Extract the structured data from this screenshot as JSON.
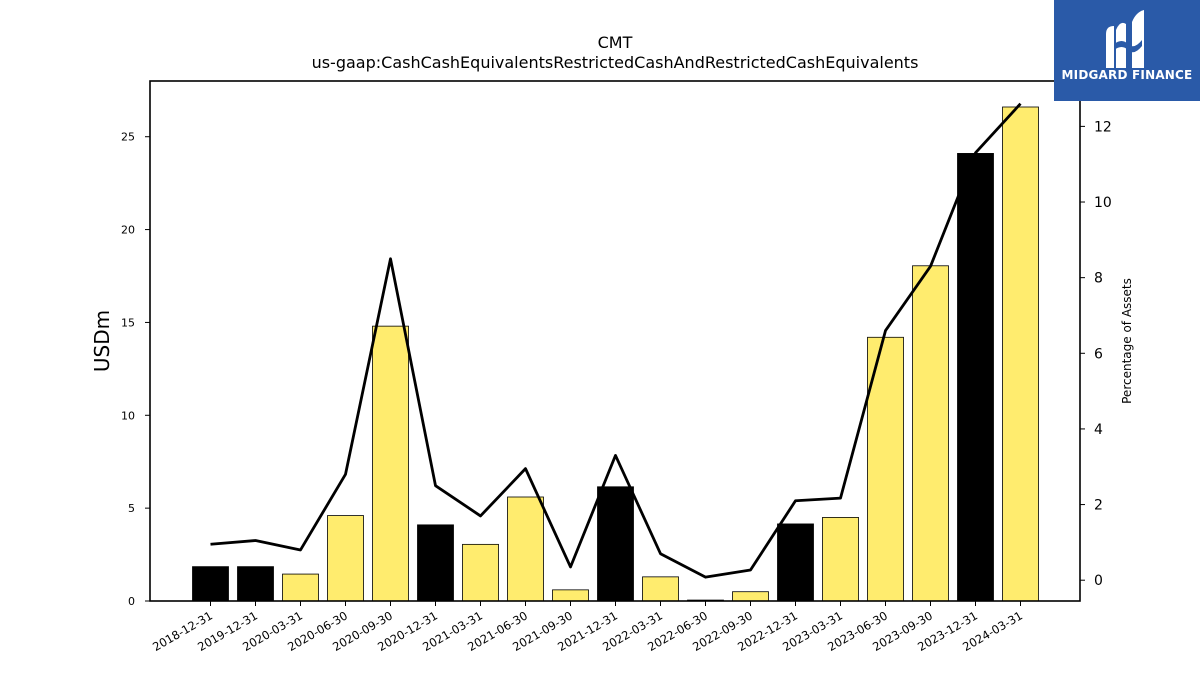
{
  "chart_data": {
    "type": "bar",
    "title": "CMT",
    "subtitle": "us-gaap:CashCashEquivalentsRestrictedCashAndRestrictedCashEquivalents",
    "ylabel": "USDm",
    "y2label": "Percentage of Assets",
    "ylim": [
      0,
      28
    ],
    "y2lim": [
      -0.55,
      13.2
    ],
    "yticks": [
      0,
      5,
      10,
      15,
      20,
      25
    ],
    "y2ticks": [
      0,
      2,
      4,
      6,
      8,
      10,
      12
    ],
    "categories": [
      "2018-12-31",
      "2019-12-31",
      "2020-03-31",
      "2020-06-30",
      "2020-09-30",
      "2020-12-31",
      "2021-03-31",
      "2021-06-30",
      "2021-09-30",
      "2021-12-31",
      "2022-03-31",
      "2022-06-30",
      "2022-09-30",
      "2022-12-31",
      "2023-03-31",
      "2023-06-30",
      "2023-09-30",
      "2023-12-31",
      "2024-03-31"
    ],
    "values": [
      1.85,
      1.85,
      1.45,
      4.6,
      14.8,
      4.1,
      3.05,
      5.6,
      0.6,
      6.15,
      1.3,
      0.05,
      0.5,
      4.15,
      4.5,
      14.2,
      18.05,
      24.1,
      26.6
    ],
    "bar_colors": [
      "#000000",
      "#000000",
      "#ffec6e",
      "#ffec6e",
      "#ffec6e",
      "#000000",
      "#ffec6e",
      "#ffec6e",
      "#ffec6e",
      "#000000",
      "#ffec6e",
      "#000000",
      "#ffec6e",
      "#000000",
      "#ffec6e",
      "#ffec6e",
      "#ffec6e",
      "#000000",
      "#ffec6e"
    ],
    "line_series": {
      "axis": "right",
      "values": [
        0.95,
        1.05,
        0.8,
        2.8,
        8.5,
        2.5,
        1.7,
        2.95,
        0.35,
        3.3,
        0.7,
        0.08,
        0.27,
        2.1,
        2.17,
        6.6,
        8.3,
        11.3,
        12.6
      ]
    },
    "grid": false
  },
  "logo": {
    "text": "MIDGARD FINANCE"
  },
  "colors": {
    "highlight": "#ffec6e",
    "dark": "#000000",
    "logo_bg": "#2a5aa8"
  }
}
